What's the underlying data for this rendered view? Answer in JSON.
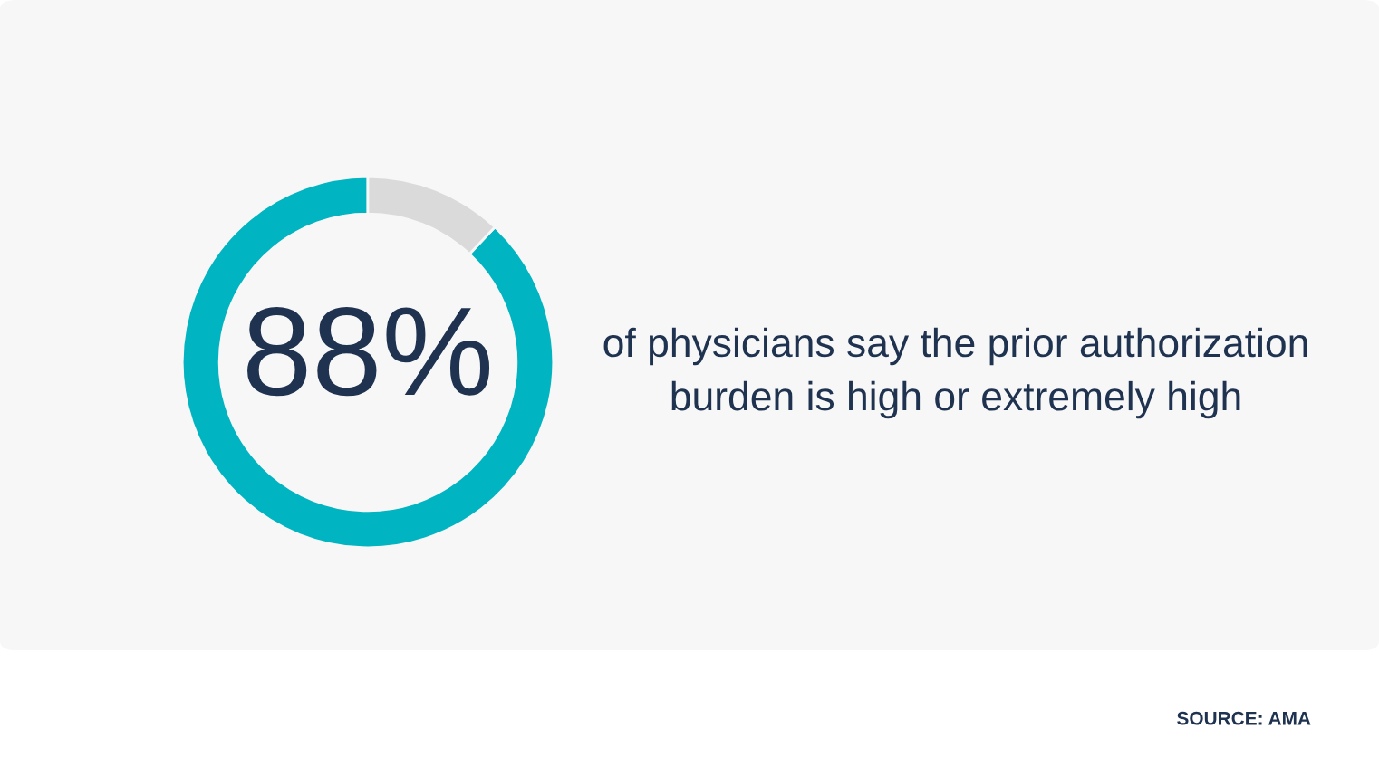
{
  "chart_data": {
    "type": "donut",
    "categories": [
      null,
      null
    ],
    "values": [
      88,
      12
    ],
    "colors": [
      "#00b5c1",
      "#dadada"
    ],
    "value_labels": [
      "88%",
      null
    ],
    "annotations": [
      "of physicians say the prior authorization burden is high or extremely high",
      "SOURCE: AMA"
    ]
  }
}
